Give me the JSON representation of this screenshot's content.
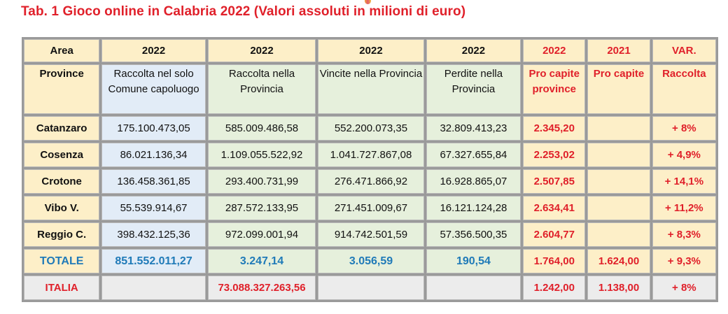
{
  "title": "Tab. 1 Gioco online in Calabria 2022 (Valori assoluti in milioni di euro)",
  "header": [
    "Area",
    "2022",
    "2022",
    "2022",
    "2022",
    "2022",
    "2021",
    "VAR."
  ],
  "descriptions": [
    "Province",
    "Raccolta nel solo Comune capoluogo",
    "Raccolta nella Provincia",
    "Vincite nella Provincia",
    "Perdite nella Provincia",
    "Pro capite province",
    "Pro capite",
    "Raccolta"
  ],
  "rows": [
    {
      "area": "Catanzaro",
      "raccolta_comune": "175.100.473,05",
      "raccolta_provincia": "585.009.486,58",
      "vincite": "552.200.073,35",
      "perdite": "32.809.413,23",
      "pro_capite_2022": "2.345,20",
      "pro_capite_2021": "",
      "var": "+ 8%"
    },
    {
      "area": "Cosenza",
      "raccolta_comune": "86.021.136,34",
      "raccolta_provincia": "1.109.055.522,92",
      "vincite": "1.041.727.867,08",
      "perdite": "67.327.655,84",
      "pro_capite_2022": "2.253,02",
      "pro_capite_2021": "",
      "var": "+ 4,9%"
    },
    {
      "area": "Crotone",
      "raccolta_comune": "136.458.361,85",
      "raccolta_provincia": "293.400.731,99",
      "vincite": "276.471.866,92",
      "perdite": "16.928.865,07",
      "pro_capite_2022": "2.507,85",
      "pro_capite_2021": "",
      "var": "+ 14,1%"
    },
    {
      "area": "Vibo V.",
      "raccolta_comune": "55.539.914,67",
      "raccolta_provincia": "287.572.133,95",
      "vincite": "271.451.009,67",
      "perdite": "16.121.124,28",
      "pro_capite_2022": "2.634,41",
      "pro_capite_2021": "",
      "var": "+ 11,2%"
    },
    {
      "area": "Reggio C.",
      "raccolta_comune": "398.432.125,36",
      "raccolta_provincia": "972.099.001,94",
      "vincite": "914.742.501,59",
      "perdite": "57.356.500,35",
      "pro_capite_2022": "2.604,77",
      "pro_capite_2021": "",
      "var": "+ 8,3%"
    }
  ],
  "totale": {
    "area": "TOTALE",
    "raccolta_comune": "851.552.011,27",
    "raccolta_provincia": "3.247,14",
    "vincite": "3.056,59",
    "perdite": "190,54",
    "pro_capite_2022": "1.764,00",
    "pro_capite_2021": "1.624,00",
    "var": "+ 9,3%"
  },
  "italia": {
    "area": "ITALIA",
    "raccolta_comune": "",
    "raccolta_provincia": "73.088.327.263,56",
    "vincite": "",
    "perdite": "",
    "pro_capite_2022": "1.242,00",
    "pro_capite_2021": "1.138,00",
    "var": "+ 8%"
  },
  "colors": {
    "accent_red": "#e0202a",
    "total_blue": "#1f7ab8",
    "area_bg": "#fdefc8",
    "blue_bg": "#e2ecf7",
    "green_bg": "#e6f0dc",
    "grey_bg": "#ececec"
  }
}
